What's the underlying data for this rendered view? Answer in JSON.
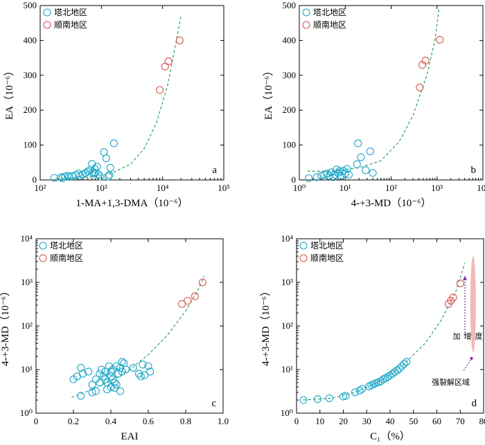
{
  "colors": {
    "tabei": "#1aa6c8",
    "shunnan": "#d9534f",
    "trend": "#2e9e6a",
    "arrow": "#7a2fa0",
    "band": "#f2b8b8"
  },
  "legend": {
    "tabei": "塔北地区",
    "shunnan": "顺南地区"
  },
  "chart_data": [
    {
      "type": "scatter",
      "panel_label": "a",
      "xlabel": "1-MA+1,3-DMA（10⁻⁶）",
      "ylabel": "EA（10⁻⁶）",
      "xscale": "log",
      "xlim": [
        100,
        100000
      ],
      "yscale": "linear",
      "ylim": [
        0,
        500
      ],
      "xticks": [
        {
          "v": 100,
          "t": "10²"
        },
        {
          "v": 1000,
          "t": "10³"
        },
        {
          "v": 10000,
          "t": "10⁴"
        },
        {
          "v": 100000,
          "t": "10⁵"
        }
      ],
      "yticks": [
        {
          "v": 0,
          "t": "0"
        },
        {
          "v": 100,
          "t": "100"
        },
        {
          "v": 200,
          "t": "200"
        },
        {
          "v": 300,
          "t": "300"
        },
        {
          "v": 400,
          "t": "400"
        },
        {
          "v": 500,
          "t": "500"
        }
      ],
      "series": [
        {
          "name": "塔北地区",
          "color_key": "tabei",
          "points": [
            [
              170,
              6
            ],
            [
              220,
              8
            ],
            [
              230,
              5
            ],
            [
              250,
              10
            ],
            [
              280,
              12
            ],
            [
              300,
              9
            ],
            [
              330,
              11
            ],
            [
              380,
              14
            ],
            [
              420,
              18
            ],
            [
              450,
              12
            ],
            [
              500,
              16
            ],
            [
              550,
              20
            ],
            [
              600,
              24
            ],
            [
              650,
              28
            ],
            [
              700,
              46
            ],
            [
              720,
              22
            ],
            [
              750,
              18
            ],
            [
              780,
              32
            ],
            [
              800,
              20
            ],
            [
              850,
              38
            ],
            [
              900,
              16
            ],
            [
              950,
              10
            ],
            [
              1100,
              80
            ],
            [
              1200,
              62
            ],
            [
              1300,
              10
            ],
            [
              1350,
              14
            ],
            [
              1400,
              35
            ],
            [
              1600,
              105
            ]
          ]
        },
        {
          "name": "顺南地区",
          "color_key": "shunnan",
          "points": [
            [
              9000,
              258
            ],
            [
              11000,
              325
            ],
            [
              12500,
              340
            ],
            [
              19000,
              400
            ]
          ]
        }
      ],
      "trend": [
        [
          180,
          5
        ],
        [
          400,
          6
        ],
        [
          800,
          10
        ],
        [
          1500,
          20
        ],
        [
          3000,
          45
        ],
        [
          5000,
          90
        ],
        [
          8000,
          165
        ],
        [
          12000,
          270
        ],
        [
          16000,
          380
        ],
        [
          20000,
          470
        ]
      ]
    },
    {
      "type": "scatter",
      "panel_label": "b",
      "xlabel": "4-+3-MD（10⁻⁶）",
      "ylabel": "EA（10⁻⁶）",
      "xscale": "log",
      "xlim": [
        1,
        10000
      ],
      "yscale": "linear",
      "ylim": [
        0,
        500
      ],
      "xticks": [
        {
          "v": 1,
          "t": "10⁰"
        },
        {
          "v": 10,
          "t": "10¹"
        },
        {
          "v": 100,
          "t": "10²"
        },
        {
          "v": 1000,
          "t": "10³"
        },
        {
          "v": 10000,
          "t": "10⁴"
        }
      ],
      "yticks": [
        {
          "v": 0,
          "t": "0"
        },
        {
          "v": 100,
          "t": "100"
        },
        {
          "v": 200,
          "t": "200"
        },
        {
          "v": 300,
          "t": "300"
        },
        {
          "v": 400,
          "t": "400"
        },
        {
          "v": 500,
          "t": "500"
        }
      ],
      "series": [
        {
          "name": "塔北地区",
          "color_key": "tabei",
          "points": [
            [
              1.6,
              5
            ],
            [
              2.4,
              8
            ],
            [
              3.0,
              12
            ],
            [
              3.5,
              15
            ],
            [
              4.0,
              18
            ],
            [
              4.5,
              12
            ],
            [
              5.0,
              22
            ],
            [
              5.5,
              8
            ],
            [
              6.0,
              15
            ],
            [
              6.5,
              30
            ],
            [
              7.0,
              20
            ],
            [
              7.5,
              25
            ],
            [
              8.0,
              12
            ],
            [
              9.0,
              26
            ],
            [
              10,
              18
            ],
            [
              11,
              32
            ],
            [
              12,
              15
            ],
            [
              18,
              45
            ],
            [
              19,
              105
            ],
            [
              22,
              65
            ],
            [
              28,
              28
            ],
            [
              35,
              82
            ],
            [
              40,
              20
            ]
          ]
        },
        {
          "name": "顺南地区",
          "color_key": "shunnan",
          "points": [
            [
              420,
              265
            ],
            [
              480,
              330
            ],
            [
              560,
              342
            ],
            [
              1150,
              402
            ]
          ]
        }
      ],
      "trend": [
        [
          1.5,
          25
        ],
        [
          5,
          25
        ],
        [
          20,
          35
        ],
        [
          60,
          55
        ],
        [
          150,
          110
        ],
        [
          300,
          185
        ],
        [
          600,
          300
        ],
        [
          900,
          400
        ],
        [
          1100,
          490
        ]
      ]
    },
    {
      "type": "scatter",
      "panel_label": "c",
      "xlabel": "EAI",
      "ylabel": "4-+3-MD（10⁻⁶）",
      "xscale": "linear",
      "xlim": [
        0,
        1.0
      ],
      "yscale": "log",
      "ylim": [
        1,
        10000
      ],
      "xticks": [
        {
          "v": 0,
          "t": "0"
        },
        {
          "v": 0.2,
          "t": "0.2"
        },
        {
          "v": 0.4,
          "t": "0.4"
        },
        {
          "v": 0.6,
          "t": "0.6"
        },
        {
          "v": 0.8,
          "t": "0.8"
        },
        {
          "v": 1.0,
          "t": "1.0"
        }
      ],
      "yticks": [
        {
          "v": 1,
          "t": "10⁰"
        },
        {
          "v": 10,
          "t": "10¹"
        },
        {
          "v": 100,
          "t": "10²"
        },
        {
          "v": 1000,
          "t": "10³"
        },
        {
          "v": 10000,
          "t": "10⁴"
        }
      ],
      "series": [
        {
          "name": "塔北地区",
          "color_key": "tabei",
          "points": [
            [
              0.2,
              6
            ],
            [
              0.22,
              7
            ],
            [
              0.24,
              11
            ],
            [
              0.25,
              8
            ],
            [
              0.24,
              2.5
            ],
            [
              0.28,
              9
            ],
            [
              0.3,
              4.5
            ],
            [
              0.3,
              3
            ],
            [
              0.32,
              3.2
            ],
            [
              0.32,
              6
            ],
            [
              0.34,
              8
            ],
            [
              0.34,
              5
            ],
            [
              0.35,
              10
            ],
            [
              0.36,
              7
            ],
            [
              0.37,
              9
            ],
            [
              0.37,
              6
            ],
            [
              0.38,
              5
            ],
            [
              0.38,
              3.5
            ],
            [
              0.39,
              12
            ],
            [
              0.4,
              9
            ],
            [
              0.4,
              7
            ],
            [
              0.4,
              4
            ],
            [
              0.41,
              10
            ],
            [
              0.41,
              6
            ],
            [
              0.42,
              5
            ],
            [
              0.42,
              3.8
            ],
            [
              0.43,
              12
            ],
            [
              0.43,
              4.5
            ],
            [
              0.44,
              8
            ],
            [
              0.45,
              11
            ],
            [
              0.45,
              3.2
            ],
            [
              0.46,
              15
            ],
            [
              0.46,
              9
            ],
            [
              0.47,
              14
            ],
            [
              0.48,
              10
            ],
            [
              0.52,
              11
            ],
            [
              0.55,
              8
            ],
            [
              0.56,
              7
            ],
            [
              0.57,
              13
            ],
            [
              0.58,
              7.5
            ],
            [
              0.6,
              12
            ],
            [
              0.61,
              9
            ]
          ]
        },
        {
          "name": "顺南地区",
          "color_key": "shunnan",
          "points": [
            [
              0.78,
              320
            ],
            [
              0.81,
              380
            ],
            [
              0.85,
              480
            ],
            [
              0.89,
              1000
            ]
          ]
        }
      ],
      "trend": [
        [
          0.19,
          2.3
        ],
        [
          0.3,
          3.5
        ],
        [
          0.4,
          5.5
        ],
        [
          0.5,
          10
        ],
        [
          0.6,
          22
        ],
        [
          0.7,
          60
        ],
        [
          0.8,
          220
        ],
        [
          0.86,
          600
        ],
        [
          0.9,
          1400
        ]
      ]
    },
    {
      "type": "scatter",
      "panel_label": "d",
      "xlabel": "C₁（%）",
      "ylabel": "4-+3-MD（10⁻⁶）",
      "xscale": "linear",
      "xlim": [
        0,
        80
      ],
      "yscale": "log",
      "ylim": [
        1,
        10000
      ],
      "xticks": [
        {
          "v": 0,
          "t": "0"
        },
        {
          "v": 10,
          "t": "10"
        },
        {
          "v": 20,
          "t": "20"
        },
        {
          "v": 30,
          "t": "30"
        },
        {
          "v": 40,
          "t": "40"
        },
        {
          "v": 50,
          "t": "50"
        },
        {
          "v": 60,
          "t": "60"
        },
        {
          "v": 70,
          "t": "70"
        },
        {
          "v": 80,
          "t": "80"
        }
      ],
      "yticks": [
        {
          "v": 1,
          "t": "10⁰"
        },
        {
          "v": 10,
          "t": "10¹"
        },
        {
          "v": 100,
          "t": "10²"
        },
        {
          "v": 1000,
          "t": "10³"
        },
        {
          "v": 10000,
          "t": "10⁴"
        }
      ],
      "series": [
        {
          "name": "塔北地区",
          "color_key": "tabei",
          "points": [
            [
              3,
              2.0
            ],
            [
              9,
              2.1
            ],
            [
              14,
              2.2
            ],
            [
              20,
              2.4
            ],
            [
              21,
              2.5
            ],
            [
              25,
              3.0
            ],
            [
              27,
              3.3
            ],
            [
              28,
              3.6
            ],
            [
              31,
              4.1
            ],
            [
              32,
              4.4
            ],
            [
              33,
              4.6
            ],
            [
              34,
              4.9
            ],
            [
              35,
              5.1
            ],
            [
              36,
              5.4
            ],
            [
              37,
              6.0
            ],
            [
              38,
              6.3
            ],
            [
              39,
              6.8
            ],
            [
              40,
              7.4
            ],
            [
              41,
              8.0
            ],
            [
              42,
              8.8
            ],
            [
              43,
              9.6
            ],
            [
              44,
              10.5
            ],
            [
              45,
              12
            ],
            [
              46,
              13.5
            ],
            [
              47,
              15
            ]
          ]
        },
        {
          "name": "顺南地区",
          "color_key": "shunnan",
          "points": [
            [
              65,
              320
            ],
            [
              66,
              380
            ],
            [
              67,
              450
            ],
            [
              70,
              950
            ]
          ]
        }
      ],
      "trend": [
        [
          3,
          2.0
        ],
        [
          15,
          2.2
        ],
        [
          25,
          3.0
        ],
        [
          35,
          5.2
        ],
        [
          45,
          12
        ],
        [
          55,
          40
        ],
        [
          62,
          140
        ],
        [
          68,
          600
        ],
        [
          72,
          2800
        ]
      ],
      "annotations": {
        "increase": "裂解程度增加",
        "strong_zone": "强裂解区域"
      }
    }
  ]
}
